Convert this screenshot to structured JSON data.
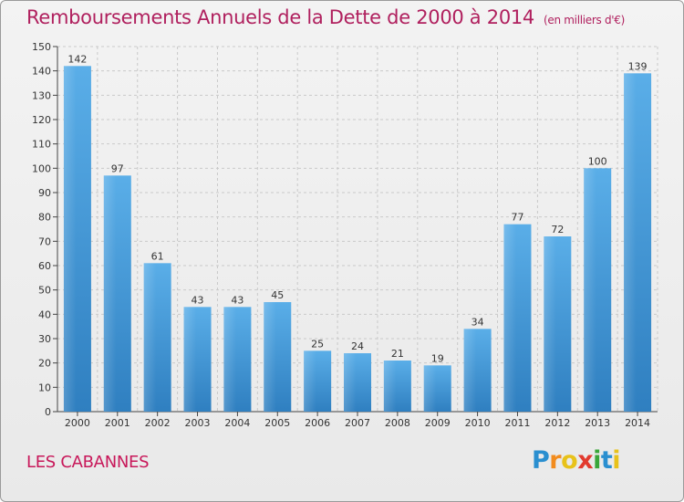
{
  "chart_data": {
    "type": "bar",
    "title": "Remboursements Annuels de la Dette de 2000 à 2014",
    "subtitle": "(en milliers d'€)",
    "categories": [
      "2000",
      "2001",
      "2002",
      "2003",
      "2004",
      "2005",
      "2006",
      "2007",
      "2008",
      "2009",
      "2010",
      "2011",
      "2012",
      "2013",
      "2014"
    ],
    "values": [
      142,
      97,
      61,
      43,
      43,
      45,
      25,
      24,
      21,
      19,
      34,
      77,
      72,
      100,
      139
    ],
    "ylim": [
      0,
      150
    ],
    "yticks": [
      0,
      10,
      20,
      30,
      40,
      50,
      60,
      70,
      80,
      90,
      100,
      110,
      120,
      130,
      140,
      150
    ],
    "grid": true,
    "bar_color": "#4a98d8",
    "xlabel": "",
    "ylabel": ""
  },
  "place_name": "LES CABANNES",
  "logo": {
    "letters": [
      "P",
      "r",
      "o",
      "x",
      "i",
      "t",
      "i"
    ],
    "colors": [
      "#2a8fd0",
      "#f28c1e",
      "#e8c21a",
      "#e23a2e",
      "#3aa63a",
      "#2a8fd0",
      "#e8c21a"
    ]
  }
}
